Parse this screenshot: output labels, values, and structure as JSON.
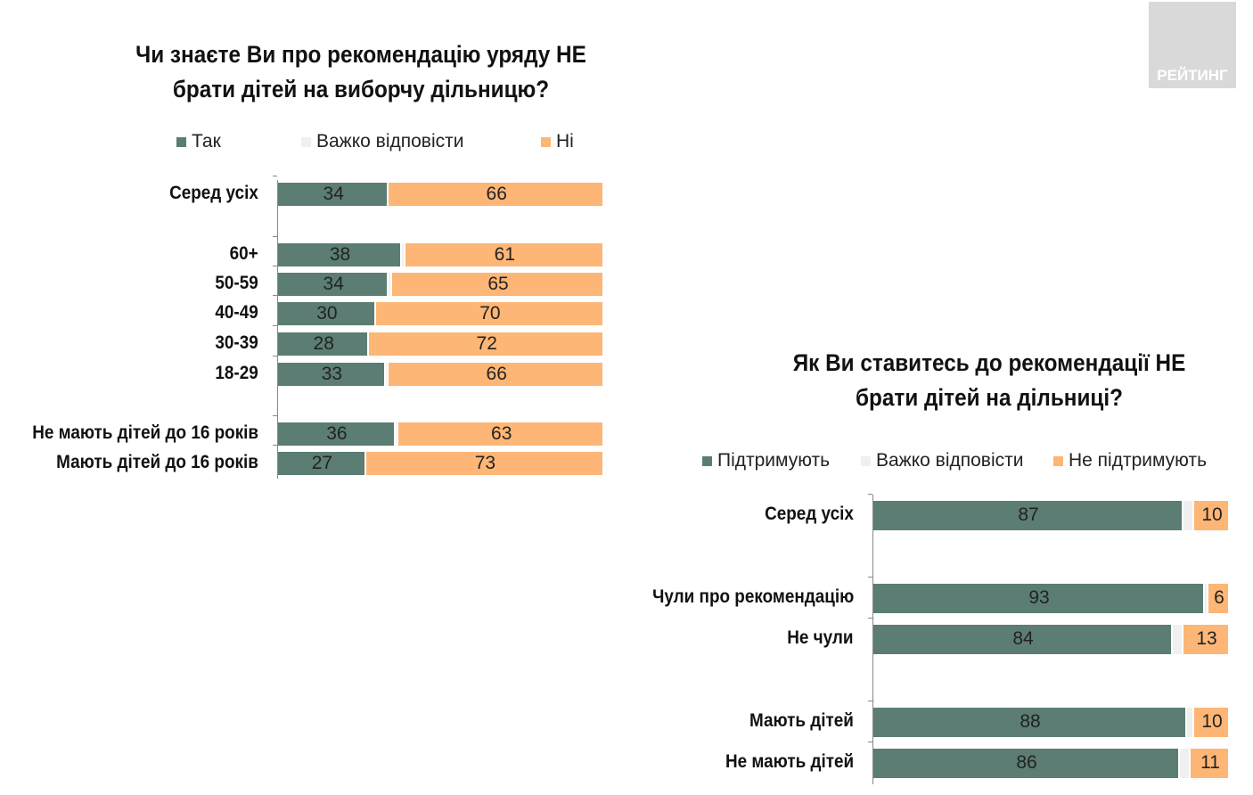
{
  "logo": "РЕЙТИНГ",
  "colors": {
    "yes": "#5b7d73",
    "hard": "#f0f0f0",
    "no": "#fdb675"
  },
  "chart_data": [
    {
      "type": "bar",
      "orientation": "horizontal",
      "stacked": true,
      "title": "Чи знаєте Ви про рекомендацію уряду НЕ брати дітей на виборчу дільницю?",
      "title_lines": [
        "Чи знаєте Ви про рекомендацію уряду НЕ",
        "брати дітей на виборчу дільницю?"
      ],
      "legend": [
        "Так",
        "Важко відповісти",
        "Ні"
      ],
      "categories": [
        "Серед усіх",
        "60+",
        "50-59",
        "40-49",
        "30-39",
        "18-29",
        "Не мають дітей до 16 років",
        "Мають дітей до 16 років"
      ],
      "series": [
        {
          "name": "Так",
          "values": [
            34,
            38,
            34,
            30,
            28,
            33,
            36,
            27
          ]
        },
        {
          "name": "Важко відповісти",
          "values": [
            0,
            1,
            1,
            0,
            0,
            1,
            1,
            0
          ]
        },
        {
          "name": "Ні",
          "values": [
            66,
            61,
            65,
            70,
            72,
            66,
            63,
            73
          ]
        }
      ],
      "xlim": [
        0,
        100
      ]
    },
    {
      "type": "bar",
      "orientation": "horizontal",
      "stacked": true,
      "title": "Як Ви ставитесь до рекомендації НЕ брати дітей на дільниці?",
      "title_lines": [
        "Як Ви ставитесь до рекомендації НЕ",
        "брати дітей на дільниці?"
      ],
      "legend": [
        "Підтримують",
        "Важко відповісти",
        "Не підтримують"
      ],
      "categories": [
        "Серед усіх",
        "Чули про рекомендацію",
        "Не чули",
        "Мають дітей",
        "Не мають дітей"
      ],
      "series": [
        {
          "name": "Підтримують",
          "values": [
            87,
            93,
            84,
            88,
            86
          ]
        },
        {
          "name": "Важко відповісти",
          "values": [
            3,
            1,
            3,
            2,
            3
          ]
        },
        {
          "name": "Не підтримують",
          "values": [
            10,
            6,
            13,
            10,
            11
          ]
        }
      ],
      "xlim": [
        0,
        100
      ]
    }
  ]
}
